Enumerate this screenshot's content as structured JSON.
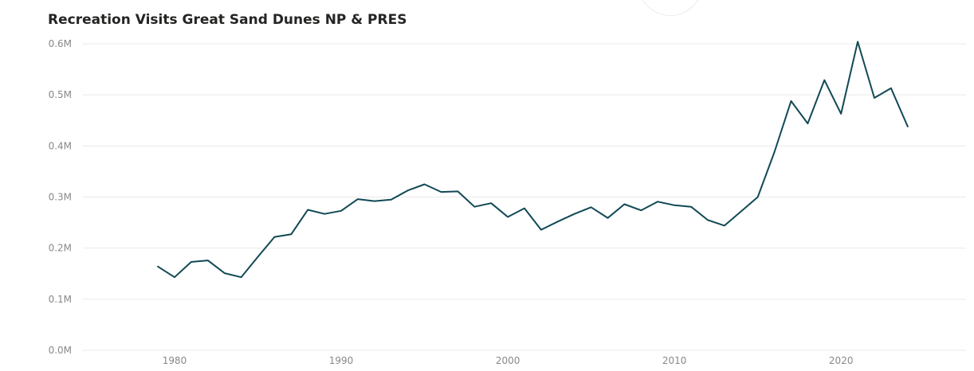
{
  "chart_data": {
    "type": "line",
    "title": "Recreation Visits Great Sand Dunes NP & PRES",
    "xlabel": "",
    "ylabel": "",
    "x_ticks": [
      "1980",
      "1990",
      "2000",
      "2010",
      "2020"
    ],
    "y_ticks": [
      "0.0M",
      "0.1M",
      "0.2M",
      "0.3M",
      "0.4M",
      "0.5M",
      "0.6M"
    ],
    "ylim": [
      0,
      0.6
    ],
    "y_unit": "M",
    "xlim": [
      1974.5,
      2027.5
    ],
    "grid": true,
    "legend": "none",
    "line_color": "#114955",
    "series": [
      {
        "x": [
          1979,
          1980,
          1981,
          1982,
          1983,
          1984,
          1985,
          1986,
          1987,
          1988,
          1989,
          1990,
          1991,
          1992,
          1993,
          1994,
          1995,
          1996,
          1997,
          1998,
          1999,
          2000,
          2001,
          2002,
          2003,
          2004,
          2005,
          2006,
          2007,
          2008,
          2009,
          2010,
          2011,
          2012,
          2013,
          2014,
          2015,
          2016,
          2017,
          2018,
          2019,
          2020,
          2021,
          2022,
          2023,
          2024
        ],
        "values": [
          0.164,
          0.143,
          0.173,
          0.176,
          0.151,
          0.143,
          0.183,
          0.222,
          0.227,
          0.275,
          0.267,
          0.273,
          0.296,
          0.292,
          0.295,
          0.313,
          0.325,
          0.31,
          0.311,
          0.281,
          0.288,
          0.261,
          0.278,
          0.236,
          0.252,
          0.267,
          0.28,
          0.259,
          0.286,
          0.274,
          0.291,
          0.284,
          0.281,
          0.255,
          0.244,
          0.272,
          0.3,
          0.388,
          0.488,
          0.444,
          0.529,
          0.463,
          0.604,
          0.494,
          0.513,
          0.438
        ]
      }
    ]
  }
}
